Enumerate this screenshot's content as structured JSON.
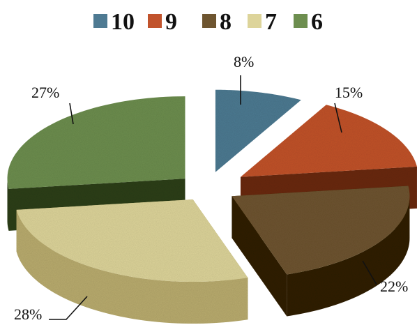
{
  "chart_data": {
    "type": "pie",
    "style": "3d-exploded",
    "legend_position": "top",
    "categories": [
      "10",
      "9",
      "8",
      "7",
      "6"
    ],
    "values": [
      8,
      15,
      22,
      28,
      27
    ],
    "labels": [
      "8%",
      "15%",
      "22%",
      "28%",
      "27%"
    ],
    "colors": [
      "#4e7a92",
      "#c1532c",
      "#6e5530",
      "#ddd49a",
      "#6d8e4f"
    ],
    "side_colors": [
      "#1f3c4e",
      "#6b2914",
      "#33240c",
      "#b9ac6e",
      "#2d3f1d"
    ]
  }
}
